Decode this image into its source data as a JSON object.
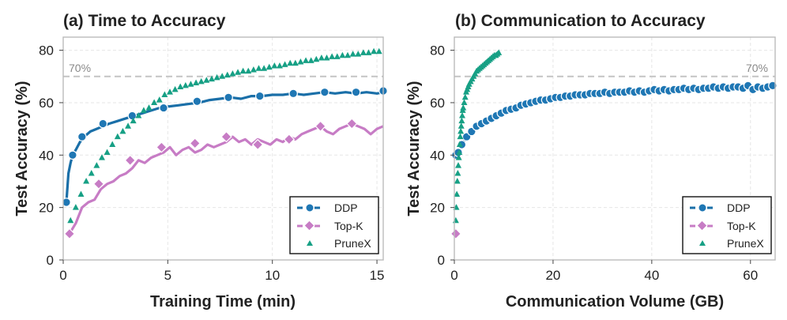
{
  "colors": {
    "ddp": "#1f77b4",
    "ddp_line": "#1a6fa8",
    "topk": "#c77cc5",
    "prunex": "#17a085",
    "ref": "#c4c4c4",
    "grid": "#e6e6e6"
  },
  "chart_data": [
    {
      "type": "scatter",
      "title": "(a) Time to Accuracy",
      "xlabel": "Training Time (min)",
      "ylabel": "Test Accuracy (%)",
      "xlim": [
        0,
        15.3
      ],
      "ylim": [
        0,
        85
      ],
      "xticks": [
        0,
        5,
        10,
        15
      ],
      "yticks": [
        0,
        20,
        40,
        60,
        80
      ],
      "ref_line": {
        "y": 70,
        "label": "70%",
        "label_side": "left"
      },
      "legend": {
        "position": "bottom-right",
        "entries": [
          "DDP",
          "Top-K",
          "PruneX"
        ]
      },
      "series": [
        {
          "name": "DDP",
          "style": "line-circle",
          "x": [
            0.15,
            0.25,
            0.35,
            0.45,
            0.6,
            0.8,
            1.0,
            1.3,
            1.6,
            1.9,
            2.2,
            2.6,
            3.0,
            3.4,
            3.8,
            4.2,
            4.6,
            5.0,
            5.5,
            6.0,
            6.5,
            7.0,
            7.5,
            8.0,
            8.5,
            9.0,
            9.5,
            10.0,
            10.5,
            11.0,
            11.5,
            12.0,
            12.5,
            13.0,
            13.5,
            14.0,
            14.5,
            15.0,
            15.3
          ],
          "y": [
            22,
            33,
            37,
            40,
            42,
            45,
            47,
            49,
            50,
            51,
            52,
            53,
            54,
            55,
            56,
            57,
            58,
            58.5,
            59,
            59.5,
            60,
            61,
            61.5,
            62,
            61.5,
            62.5,
            62.5,
            63,
            63,
            63.5,
            63,
            63.5,
            64,
            63.5,
            64,
            63.5,
            64,
            63.5,
            64
          ],
          "markers": [
            [
              0.15,
              22
            ],
            [
              0.45,
              40
            ],
            [
              0.9,
              47
            ],
            [
              1.9,
              52
            ],
            [
              3.3,
              55
            ],
            [
              4.8,
              58
            ],
            [
              6.4,
              60.5
            ],
            [
              7.9,
              62
            ],
            [
              9.4,
              62.5
            ],
            [
              11.0,
              63.5
            ],
            [
              12.5,
              64
            ],
            [
              14.0,
              64
            ],
            [
              15.3,
              64.5
            ]
          ]
        },
        {
          "name": "Top-K",
          "style": "line-diamond",
          "x": [
            0.3,
            0.6,
            0.9,
            1.2,
            1.5,
            1.8,
            2.1,
            2.4,
            2.7,
            3.0,
            3.3,
            3.6,
            3.9,
            4.2,
            4.5,
            4.8,
            5.1,
            5.4,
            5.7,
            6.0,
            6.3,
            6.6,
            6.9,
            7.2,
            7.5,
            7.8,
            8.1,
            8.4,
            8.7,
            9.0,
            9.3,
            9.6,
            9.9,
            10.2,
            10.5,
            10.8,
            11.1,
            11.4,
            11.7,
            12.0,
            12.3,
            12.6,
            12.9,
            13.2,
            13.5,
            13.8,
            14.1,
            14.4,
            14.7,
            15.0,
            15.3
          ],
          "y": [
            10,
            14,
            20,
            22,
            23,
            27,
            29,
            30,
            32,
            33,
            35,
            38,
            37,
            39,
            40,
            41,
            43,
            40,
            42,
            43,
            41,
            42,
            44,
            43,
            44,
            45,
            47,
            45,
            46,
            44,
            46,
            45,
            44,
            46,
            45,
            47,
            46,
            48,
            49,
            50,
            51,
            49,
            48,
            50,
            51,
            52,
            51,
            50,
            48,
            50,
            51
          ],
          "markers": [
            [
              0.3,
              10
            ],
            [
              1.7,
              29
            ],
            [
              3.2,
              38
            ],
            [
              4.7,
              43
            ],
            [
              6.3,
              44.5
            ],
            [
              7.8,
              47
            ],
            [
              9.3,
              44
            ],
            [
              10.8,
              46
            ],
            [
              12.3,
              51
            ],
            [
              13.8,
              52
            ]
          ]
        },
        {
          "name": "PruneX",
          "style": "marker-triangle",
          "x": [
            0.35,
            0.6,
            0.85,
            1.1,
            1.35,
            1.6,
            1.85,
            2.1,
            2.35,
            2.6,
            2.85,
            3.1,
            3.35,
            3.6,
            3.85,
            4.1,
            4.35,
            4.6,
            4.85,
            5.1,
            5.35,
            5.6,
            5.85,
            6.1,
            6.35,
            6.6,
            6.85,
            7.1,
            7.35,
            7.6,
            7.85,
            8.1,
            8.35,
            8.6,
            8.85,
            9.1,
            9.35,
            9.6,
            9.85,
            10.1,
            10.35,
            10.6,
            10.85,
            11.1,
            11.35,
            11.6,
            11.85,
            12.1,
            12.35,
            12.6,
            12.85,
            13.1,
            13.35,
            13.6,
            13.85,
            14.1,
            14.35,
            14.6,
            14.85,
            15.1
          ],
          "y": [
            15,
            20,
            25,
            30,
            33,
            36,
            39,
            41,
            44,
            47,
            49,
            51,
            53,
            55,
            57,
            58,
            60,
            61,
            63,
            64,
            65,
            66,
            66.5,
            67,
            67.5,
            68,
            68.5,
            69,
            69.5,
            70,
            70.5,
            71,
            71.5,
            72,
            72,
            72.5,
            73,
            73,
            73.5,
            74,
            74,
            74.5,
            75,
            75,
            75.5,
            76,
            76,
            76.5,
            77,
            77,
            77.5,
            77.5,
            78,
            78,
            78.5,
            78.5,
            79,
            79,
            79.5,
            79.5
          ]
        }
      ]
    },
    {
      "type": "scatter",
      "title": "(b) Communication to Accuracy",
      "xlabel": "Communication Volume (GB)",
      "ylabel": "Test Accuracy (%)",
      "xlim": [
        0,
        65
      ],
      "ylim": [
        0,
        85
      ],
      "xticks": [
        0,
        20,
        40,
        60
      ],
      "yticks": [
        0,
        20,
        40,
        60,
        80
      ],
      "ref_line": {
        "y": 70,
        "label": "70%",
        "label_side": "right"
      },
      "legend": {
        "position": "bottom-right",
        "entries": [
          "DDP",
          "Top-K",
          "PruneX"
        ]
      },
      "series": [
        {
          "name": "DDP",
          "style": "line-circle",
          "x": [
            0.3,
            0.8,
            1.5,
            2.5,
            3.5,
            4.5,
            5.5,
            6.5,
            7.5,
            8.5,
            9.5,
            10.5,
            11.5,
            12.5,
            13.5,
            14.5,
            15.5,
            16.5,
            17.5,
            18.5,
            19.5,
            20.5,
            21.5,
            22.5,
            23.5,
            24.5,
            25.5,
            26.5,
            27.5,
            28.5,
            29.5,
            30.5,
            31.5,
            32.5,
            33.5,
            34.5,
            35.5,
            36.5,
            37.5,
            38.5,
            39.5,
            40.5,
            41.5,
            42.5,
            43.5,
            44.5,
            45.5,
            46.5,
            47.5,
            48.5,
            49.5,
            50.5,
            51.5,
            52.5,
            53.5,
            54.5,
            55.5,
            56.5,
            57.5,
            58.5,
            59.5,
            60.5,
            61.5,
            62.5,
            63.5,
            64.5
          ],
          "y": [
            40,
            41,
            44,
            47,
            49,
            51,
            52,
            53,
            54,
            55,
            56,
            57,
            57.5,
            58,
            59,
            59.5,
            60,
            60.5,
            61,
            61,
            61.5,
            62,
            62,
            62.5,
            62.5,
            63,
            63,
            63,
            63.5,
            63.5,
            63.5,
            64,
            63.5,
            64,
            64,
            64,
            64.5,
            64,
            64.5,
            64,
            64.5,
            65,
            64.5,
            65,
            64.5,
            65,
            65,
            65.5,
            65,
            65.5,
            65,
            65.5,
            65.5,
            66,
            65.5,
            66,
            65.5,
            66,
            66,
            65.5,
            66.5,
            65,
            66,
            65.5,
            66,
            66.5
          ]
        },
        {
          "name": "Top-K",
          "style": "line-diamond",
          "x": [
            0.3
          ],
          "y": [
            10
          ]
        },
        {
          "name": "PruneX",
          "style": "marker-triangle",
          "x": [
            0.3,
            0.4,
            0.5,
            0.6,
            0.7,
            0.8,
            0.9,
            1.0,
            1.1,
            1.2,
            1.3,
            1.4,
            1.5,
            1.6,
            1.7,
            1.8,
            2.0,
            2.2,
            2.4,
            2.6,
            2.8,
            3.0,
            3.3,
            3.6,
            3.9,
            4.2,
            4.5,
            4.8,
            5.1,
            5.4,
            5.7,
            6.0,
            6.3,
            6.6,
            6.9,
            7.2,
            7.5,
            7.8,
            8.1,
            8.4,
            8.7,
            9.0
          ],
          "y": [
            15,
            20,
            25,
            30,
            33,
            36,
            39,
            41,
            44,
            47,
            49,
            51,
            53,
            55,
            57,
            58,
            60,
            62,
            64,
            65,
            66,
            67,
            68,
            69,
            70,
            71,
            72,
            72.5,
            73,
            73.5,
            74,
            74.5,
            75,
            75.5,
            76,
            76.5,
            77,
            77.5,
            78,
            78,
            78.5,
            79
          ]
        }
      ]
    }
  ]
}
